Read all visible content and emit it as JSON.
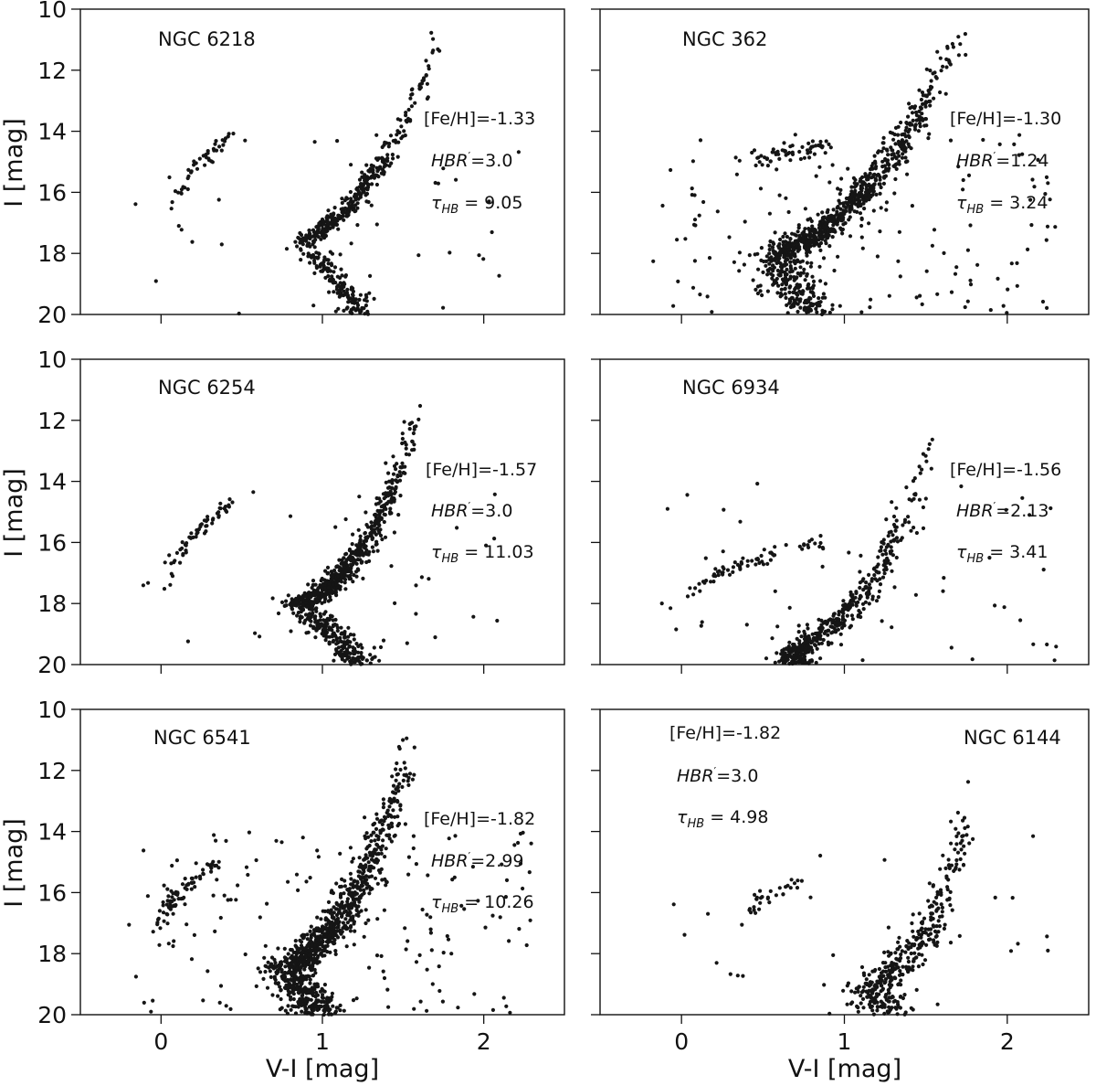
{
  "chart_data": {
    "type": "scatter",
    "xlabel": "V-I [mag]",
    "ylabel": "I [mag]",
    "xlim": [
      -0.5,
      2.5
    ],
    "ylim": [
      20,
      10
    ],
    "xticks": [
      "0",
      "1",
      "2"
    ],
    "xtick_values": [
      0,
      1,
      2
    ],
    "yticks": [
      "10",
      "12",
      "14",
      "16",
      "18",
      "20"
    ],
    "ytick_values": [
      10,
      12,
      14,
      16,
      18,
      20
    ],
    "panels": [
      {
        "title": "NGC 6218",
        "feh": "[Fe/H]=-1.33",
        "hbr_label": "HBR",
        "hbr_value": "=3.0",
        "tau_label": "τ",
        "tau_sub": "HB",
        "tau_value": " = 9.05",
        "rgb": {
          "tip_x": 1.75,
          "tip_y": 10.1,
          "to_x": 0.88,
          "to_y": 17.6,
          "ms_x": 1.25,
          "ms_y": 20.0,
          "n": 500,
          "scatter": 0.02
        },
        "hb": {
          "x0": 0.07,
          "y0": 17.0,
          "x1": 0.45,
          "y1": 14.1,
          "n": 45
        },
        "field": 35,
        "seed": 11
      },
      {
        "title": "NGC 362",
        "feh": "[Fe/H]=-1.30",
        "hbr_label": "HBR",
        "hbr_value": "=1.24",
        "tau_label": "τ",
        "tau_sub": "HB",
        "tau_value": " = 3.24",
        "rgb": {
          "tip_x": 1.7,
          "tip_y": 10.6,
          "to_x": 0.6,
          "to_y": 18.0,
          "ms_x": 0.78,
          "ms_y": 20.0,
          "n": 900,
          "scatter": 0.035
        },
        "hb": {
          "x0": 0.45,
          "y0": 15.0,
          "x1": 0.9,
          "y1": 14.5,
          "n": 50
        },
        "field": 160,
        "seed": 23
      },
      {
        "title": "NGC 6254",
        "feh": "[Fe/H]=-1.57",
        "hbr_label": "HBR",
        "hbr_value": "=3.0",
        "tau_label": "τ",
        "tau_sub": "HB",
        "tau_value": " = 11.03",
        "rgb": {
          "tip_x": 1.6,
          "tip_y": 11.2,
          "to_x": 0.87,
          "to_y": 18.0,
          "ms_x": 1.25,
          "ms_y": 20.0,
          "n": 800,
          "scatter": 0.025
        },
        "hb": {
          "x0": 0.05,
          "y0": 17.5,
          "x1": 0.45,
          "y1": 14.7,
          "n": 60
        },
        "field": 40,
        "seed": 37
      },
      {
        "title": "NGC 6934",
        "feh": "[Fe/H]=-1.56",
        "hbr_label": "HBR",
        "hbr_value": "=2.13",
        "tau_label": "τ",
        "tau_sub": "HB",
        "tau_value": " = 3.41",
        "rgb": {
          "tip_x": 1.55,
          "tip_y": 12.3,
          "to_x": 0.72,
          "to_y": 19.5,
          "ms_x": 0.7,
          "ms_y": 20.0,
          "n": 450,
          "scatter": 0.025
        },
        "hb": {
          "x0": 0.05,
          "y0": 18.0,
          "x1": 0.85,
          "y1": 16.0,
          "n": 70
        },
        "field": 60,
        "seed": 51
      },
      {
        "title": "NGC 6541",
        "feh": "[Fe/H]=-1.82",
        "hbr_label": "HBR",
        "hbr_value": "=2.99",
        "tau_label": "τ",
        "tau_sub": "HB",
        "tau_value": " = 10.26",
        "rgb": {
          "tip_x": 1.55,
          "tip_y": 10.8,
          "to_x": 0.78,
          "to_y": 18.5,
          "ms_x": 0.98,
          "ms_y": 20.0,
          "n": 1000,
          "scatter": 0.035
        },
        "hb": {
          "x0": -0.05,
          "y0": 17.8,
          "x1": 0.35,
          "y1": 15.0,
          "n": 70
        },
        "field": 170,
        "seed": 67
      },
      {
        "title": "NGC 6144",
        "feh": "[Fe/H]=-1.82",
        "hbr_label": "HBR",
        "hbr_value": "=3.0",
        "tau_label": "τ",
        "tau_sub": "HB",
        "tau_value": " = 4.98",
        "rgb": {
          "tip_x": 1.8,
          "tip_y": 12.0,
          "to_x": 1.18,
          "to_y": 19.0,
          "ms_x": 1.27,
          "ms_y": 20.0,
          "n": 380,
          "scatter": 0.035
        },
        "hb": {
          "x0": 0.35,
          "y0": 17.1,
          "x1": 0.75,
          "y1": 15.6,
          "n": 30
        },
        "field": 30,
        "seed": 79
      }
    ]
  }
}
